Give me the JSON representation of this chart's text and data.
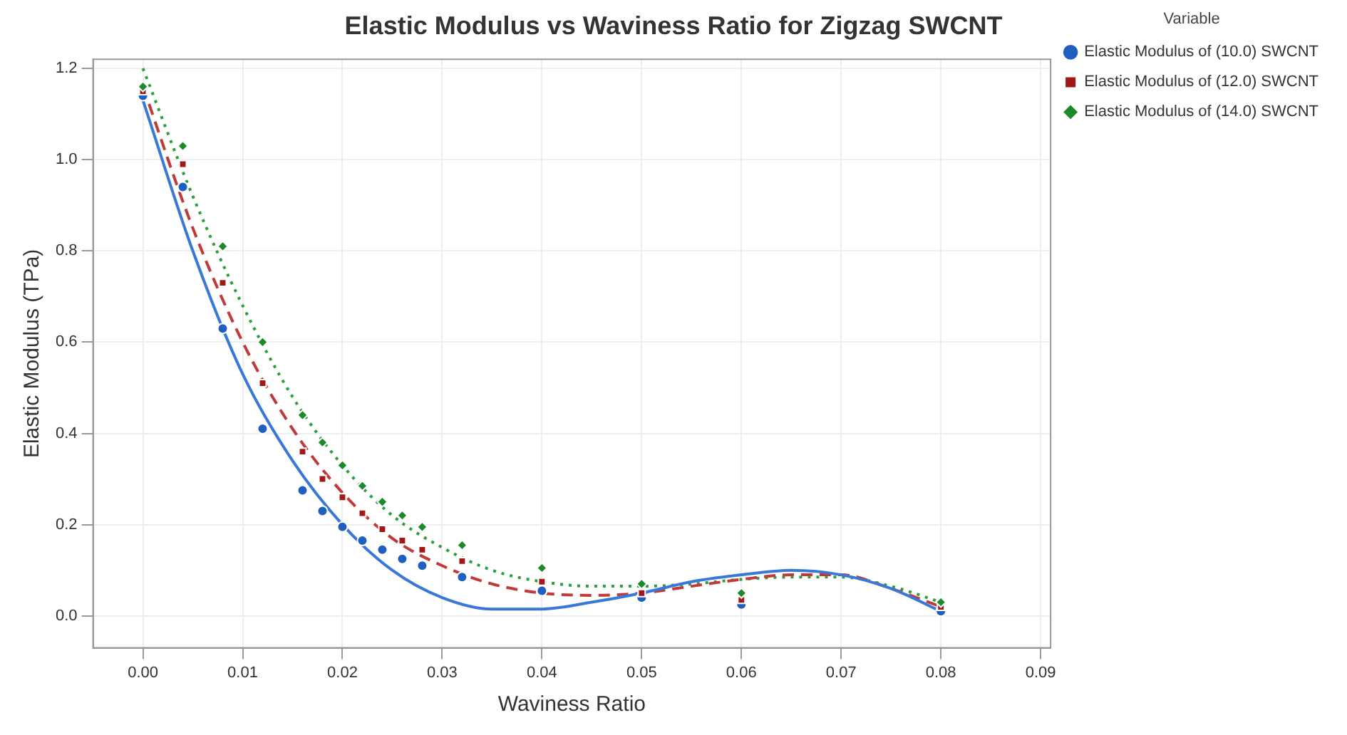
{
  "chart_data": {
    "type": "scatter",
    "title": "Elastic Modulus vs Waviness Ratio for Zigzag SWCNT",
    "xlabel": "Waviness Ratio",
    "ylabel": "Elastic Modulus (TPa)",
    "legend_title": "Variable",
    "legend": "right",
    "grid": true,
    "x": [
      0,
      0.004,
      0.008,
      0.012,
      0.016,
      0.018,
      0.02,
      0.022,
      0.024,
      0.026,
      0.028,
      0.032,
      0.04,
      0.05,
      0.06,
      0.08
    ],
    "series": [
      {
        "name": "Elastic Modulus of (10.0) SWCNT",
        "color": "#1f5fbf",
        "marker": "circle",
        "line_style": "solid",
        "values": [
          1.14,
          0.94,
          0.63,
          0.41,
          0.275,
          0.23,
          0.195,
          0.165,
          0.145,
          0.125,
          0.11,
          0.085,
          0.055,
          0.04,
          0.025,
          0.01
        ]
      },
      {
        "name": "Elastic Modulus of (12.0) SWCNT",
        "color": "#a01818",
        "marker": "square",
        "line_style": "dashed",
        "values": [
          1.15,
          0.99,
          0.73,
          0.51,
          0.36,
          0.3,
          0.26,
          0.225,
          0.19,
          0.165,
          0.145,
          0.12,
          0.075,
          0.05,
          0.035,
          0.02
        ]
      },
      {
        "name": "Elastic Modulus of (14.0) SWCNT",
        "color": "#1a8a2a",
        "marker": "diamond",
        "line_style": "dotted",
        "values": [
          1.16,
          1.03,
          0.81,
          0.6,
          0.44,
          0.38,
          0.33,
          0.285,
          0.25,
          0.22,
          0.195,
          0.155,
          0.105,
          0.07,
          0.05,
          0.03
        ]
      },
      {
        "type": "line",
        "color": "#3a78d8",
        "marker": "none",
        "line_style": "solid",
        "x": [
          0,
          0.005,
          0.01,
          0.015,
          0.02,
          0.025,
          0.03,
          0.035,
          0.04,
          0.045,
          0.05,
          0.055,
          0.06,
          0.065,
          0.07,
          0.075,
          0.08
        ],
        "values": [
          1.13,
          0.8,
          0.53,
          0.34,
          0.2,
          0.1,
          0.04,
          0.015,
          0.015,
          0.03,
          0.05,
          0.075,
          0.09,
          0.1,
          0.09,
          0.06,
          0.01
        ]
      },
      {
        "type": "line",
        "color": "#c03a3a",
        "marker": "none",
        "line_style": "dashed",
        "x": [
          0,
          0.005,
          0.01,
          0.015,
          0.02,
          0.025,
          0.03,
          0.035,
          0.04,
          0.045,
          0.05,
          0.055,
          0.06,
          0.065,
          0.07,
          0.075,
          0.08
        ],
        "values": [
          1.16,
          0.85,
          0.6,
          0.41,
          0.27,
          0.17,
          0.11,
          0.07,
          0.05,
          0.045,
          0.05,
          0.065,
          0.08,
          0.09,
          0.09,
          0.06,
          0.02
        ]
      },
      {
        "type": "line",
        "color": "#2aa03a",
        "marker": "none",
        "line_style": "dotted",
        "x": [
          0,
          0.005,
          0.01,
          0.015,
          0.02,
          0.025,
          0.03,
          0.035,
          0.04,
          0.045,
          0.05,
          0.055,
          0.06,
          0.065,
          0.07,
          0.075,
          0.08
        ],
        "values": [
          1.2,
          0.92,
          0.68,
          0.48,
          0.33,
          0.22,
          0.15,
          0.1,
          0.075,
          0.065,
          0.065,
          0.07,
          0.08,
          0.085,
          0.085,
          0.065,
          0.03
        ]
      }
    ],
    "xlim": [
      -0.005,
      0.091
    ],
    "xticks": [
      {
        "value": 0,
        "label": "0.00"
      },
      0.01,
      0.02,
      0.03,
      0.04,
      0.05,
      0.06,
      0.07,
      0.08,
      0.09
    ],
    "ylim": [
      -0.07,
      1.22
    ],
    "yticks": [
      {
        "value": 0,
        "label": "0.0"
      },
      0.2,
      0.4,
      0.6,
      0.8,
      {
        "value": 1,
        "label": "1.0"
      },
      1.2
    ]
  }
}
